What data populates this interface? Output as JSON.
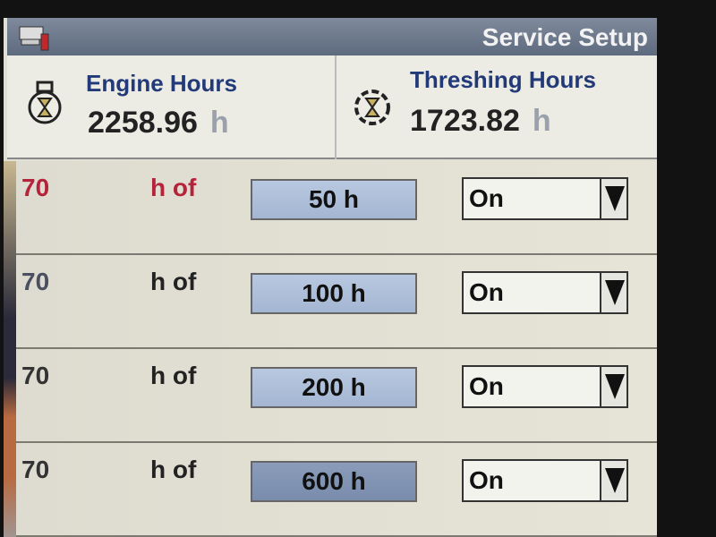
{
  "titlebar": {
    "title": "Service Setup",
    "icon": "service-tools-icon"
  },
  "engine": {
    "label": "Engine Hours",
    "value": "2258.96",
    "unit": "h",
    "icon": "engine-hourglass-icon"
  },
  "threshing": {
    "label": "Threshing Hours",
    "value": "1723.82",
    "unit": "h",
    "icon": "threshing-hourglass-icon"
  },
  "rows": [
    {
      "remaining": "70",
      "of": "h of",
      "interval": "50 h",
      "state": "On",
      "highlight": true
    },
    {
      "remaining": "70",
      "of": "h of",
      "interval": "100 h",
      "state": "On",
      "highlight": false
    },
    {
      "remaining": "70",
      "of": "h of",
      "interval": "200 h",
      "state": "On",
      "highlight": false
    },
    {
      "remaining": "70",
      "of": "h of",
      "interval": "600 h",
      "state": "On",
      "highlight": false
    }
  ],
  "colors": {
    "title_bar": "#6a7588",
    "label_blue": "#233a78",
    "warning_red": "#b4233a",
    "interval_button": "#aebfda"
  }
}
